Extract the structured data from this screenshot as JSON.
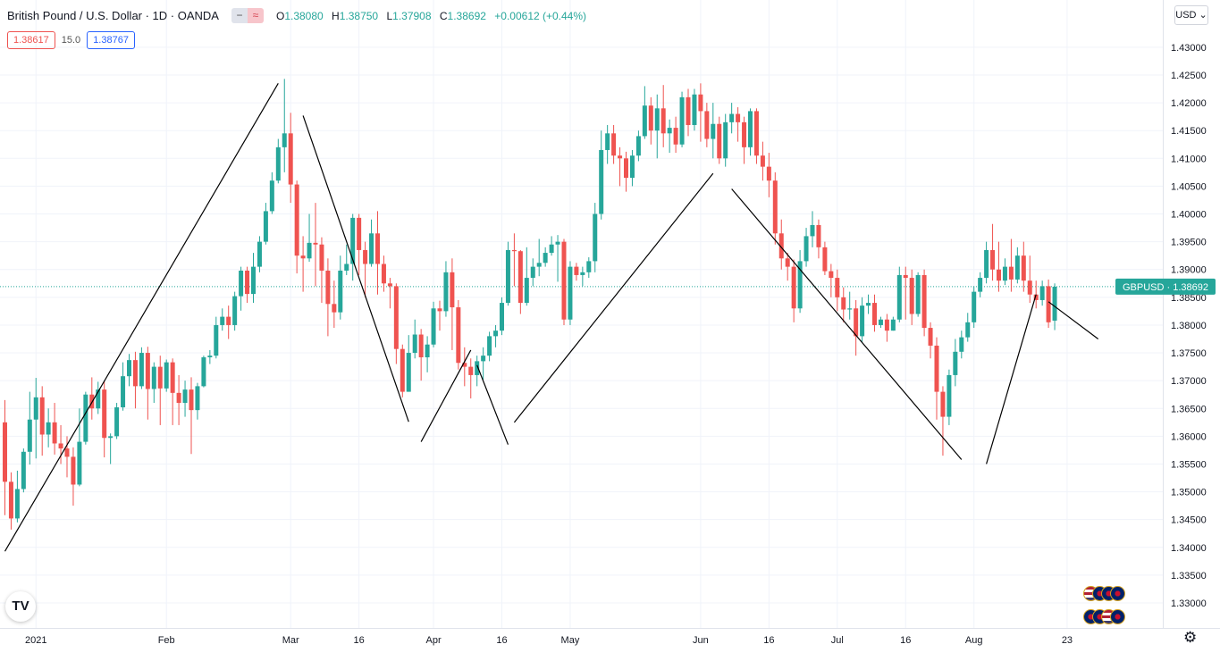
{
  "header": {
    "symbol": "British Pound / U.S. Dollar · 1D · OANDA",
    "open_label": "O",
    "open": "1.38080",
    "high_label": "H",
    "high": "1.38750",
    "low_label": "L",
    "low": "1.37908",
    "close_label": "C",
    "close": "1.38692",
    "change": "+0.00612 (+0.44%)",
    "minus_icon": "−",
    "wave_icon": "≈"
  },
  "spread": {
    "bid": "1.38617",
    "spread": "15.0",
    "ask": "1.38767"
  },
  "currency_button": "USD ⌄",
  "logo_text": "TV",
  "settings_icon": "⚙",
  "colors": {
    "up": "#26a69a",
    "down": "#ef5350",
    "grid": "#f0f3fa",
    "price_label": "#26a69a",
    "text": "#131722"
  },
  "chart_data": {
    "type": "candlestick",
    "title": "British Pound / U.S. Dollar · 1D · OANDA",
    "current_price_label": "GBPUSD · 1.38692",
    "current_price": 1.38692,
    "y_axis": {
      "ylim": [
        1.3255,
        1.4385
      ],
      "ticks": [
        "1.43000",
        "1.42500",
        "1.42000",
        "1.41500",
        "1.41000",
        "1.40500",
        "1.40000",
        "1.39500",
        "1.39000",
        "1.38500",
        "1.38000",
        "1.37500",
        "1.37000",
        "1.36500",
        "1.36000",
        "1.35500",
        "1.35000",
        "1.34500",
        "1.34000",
        "1.33500",
        "1.33000"
      ],
      "tick_values": [
        1.43,
        1.425,
        1.42,
        1.415,
        1.41,
        1.405,
        1.4,
        1.395,
        1.39,
        1.385,
        1.38,
        1.375,
        1.37,
        1.365,
        1.36,
        1.355,
        1.35,
        1.345,
        1.34,
        1.335,
        1.33
      ]
    },
    "x_axis": {
      "labels": [
        {
          "text": "2021",
          "index": 5
        },
        {
          "text": "Feb",
          "index": 26
        },
        {
          "text": "Mar",
          "index": 46
        },
        {
          "text": "16",
          "index": 57
        },
        {
          "text": "Apr",
          "index": 69
        },
        {
          "text": "16",
          "index": 80
        },
        {
          "text": "May",
          "index": 91
        },
        {
          "text": "Jun",
          "index": 112
        },
        {
          "text": "16",
          "index": 123
        },
        {
          "text": "Jul",
          "index": 134
        },
        {
          "text": "16",
          "index": 145
        },
        {
          "text": "Aug",
          "index": 156
        },
        {
          "text": "23",
          "index": 171
        }
      ]
    },
    "grid": true,
    "candles": [
      [
        1.3625,
        1.3518,
        1.3458,
        1.3665
      ],
      [
        1.3518,
        1.3452,
        1.3432,
        1.3535
      ],
      [
        1.3452,
        1.3505,
        1.3445,
        1.3538
      ],
      [
        1.3505,
        1.3572,
        1.3499,
        1.3578
      ],
      [
        1.3572,
        1.363,
        1.3549,
        1.368
      ],
      [
        1.363,
        1.367,
        1.356,
        1.3705
      ],
      [
        1.367,
        1.3603,
        1.3565,
        1.369
      ],
      [
        1.3603,
        1.3625,
        1.358,
        1.365
      ],
      [
        1.3625,
        1.3587,
        1.3567,
        1.366
      ],
      [
        1.3587,
        1.3578,
        1.355,
        1.362
      ],
      [
        1.3578,
        1.3563,
        1.3526,
        1.36
      ],
      [
        1.3563,
        1.3513,
        1.3475,
        1.358
      ],
      [
        1.3513,
        1.359,
        1.351,
        1.365
      ],
      [
        1.359,
        1.3675,
        1.3585,
        1.368
      ],
      [
        1.3675,
        1.365,
        1.363,
        1.3706
      ],
      [
        1.365,
        1.3684,
        1.364,
        1.3698
      ],
      [
        1.3684,
        1.3597,
        1.3562,
        1.37
      ],
      [
        1.3597,
        1.36,
        1.355,
        1.3605
      ],
      [
        1.36,
        1.3652,
        1.3595,
        1.366
      ],
      [
        1.3652,
        1.3708,
        1.3646,
        1.3733
      ],
      [
        1.3708,
        1.3737,
        1.369,
        1.3748
      ],
      [
        1.3737,
        1.369,
        1.365,
        1.3752
      ],
      [
        1.369,
        1.375,
        1.3685,
        1.376
      ],
      [
        1.375,
        1.3685,
        1.363,
        1.3761
      ],
      [
        1.3685,
        1.3725,
        1.366,
        1.3733
      ],
      [
        1.3725,
        1.3686,
        1.362,
        1.3745
      ],
      [
        1.3686,
        1.3733,
        1.368,
        1.3738
      ],
      [
        1.3733,
        1.3678,
        1.362,
        1.374
      ],
      [
        1.3678,
        1.366,
        1.362,
        1.371
      ],
      [
        1.366,
        1.3684,
        1.3635,
        1.37
      ],
      [
        1.3684,
        1.3647,
        1.3568,
        1.3706
      ],
      [
        1.3647,
        1.369,
        1.363,
        1.3696
      ],
      [
        1.369,
        1.3742,
        1.3688,
        1.3745
      ],
      [
        1.3742,
        1.3745,
        1.373,
        1.3755
      ],
      [
        1.3745,
        1.38,
        1.374,
        1.3815
      ],
      [
        1.38,
        1.3815,
        1.379,
        1.383
      ],
      [
        1.3815,
        1.38,
        1.3775,
        1.3835
      ],
      [
        1.38,
        1.3852,
        1.379,
        1.386
      ],
      [
        1.3852,
        1.3898,
        1.3826,
        1.3905
      ],
      [
        1.3898,
        1.3856,
        1.384,
        1.3905
      ],
      [
        1.3856,
        1.3905,
        1.384,
        1.393
      ],
      [
        1.3905,
        1.395,
        1.3895,
        1.396
      ],
      [
        1.395,
        1.4005,
        1.3945,
        1.402
      ],
      [
        1.4005,
        1.406,
        1.4,
        1.4075
      ],
      [
        1.406,
        1.412,
        1.4055,
        1.4135
      ],
      [
        1.412,
        1.4145,
        1.4075,
        1.4243
      ],
      [
        1.4145,
        1.4053,
        1.402,
        1.4182
      ],
      [
        1.4053,
        1.3925,
        1.3893,
        1.406
      ],
      [
        1.3925,
        1.392,
        1.386,
        1.396
      ],
      [
        1.392,
        1.3948,
        1.3914,
        1.4
      ],
      [
        1.3948,
        1.3945,
        1.387,
        1.402
      ],
      [
        1.3945,
        1.3898,
        1.384,
        1.3958
      ],
      [
        1.3898,
        1.3838,
        1.378,
        1.392
      ],
      [
        1.3838,
        1.3823,
        1.3795,
        1.388
      ],
      [
        1.3823,
        1.3898,
        1.381,
        1.3925
      ],
      [
        1.3898,
        1.391,
        1.389,
        1.3945
      ],
      [
        1.391,
        1.3993,
        1.388,
        1.4
      ],
      [
        1.3993,
        1.3935,
        1.389,
        1.4
      ],
      [
        1.3935,
        1.391,
        1.385,
        1.395
      ],
      [
        1.391,
        1.3965,
        1.3905,
        1.399
      ],
      [
        1.3965,
        1.391,
        1.3855,
        1.4005
      ],
      [
        1.391,
        1.3875,
        1.386,
        1.3925
      ],
      [
        1.3875,
        1.387,
        1.383,
        1.3885
      ],
      [
        1.387,
        1.3757,
        1.373,
        1.3875
      ],
      [
        1.3757,
        1.368,
        1.367,
        1.3765
      ],
      [
        1.368,
        1.375,
        1.368,
        1.3782
      ],
      [
        1.375,
        1.3783,
        1.374,
        1.381
      ],
      [
        1.3783,
        1.3742,
        1.37,
        1.3793
      ],
      [
        1.3742,
        1.3765,
        1.3715,
        1.378
      ],
      [
        1.3765,
        1.383,
        1.376,
        1.3842
      ],
      [
        1.383,
        1.3825,
        1.379,
        1.3844
      ],
      [
        1.3825,
        1.3895,
        1.3815,
        1.3915
      ],
      [
        1.3895,
        1.3832,
        1.3755,
        1.392
      ],
      [
        1.3832,
        1.3732,
        1.372,
        1.3845
      ],
      [
        1.3732,
        1.3725,
        1.369,
        1.376
      ],
      [
        1.3725,
        1.371,
        1.3668,
        1.374
      ],
      [
        1.371,
        1.3735,
        1.369,
        1.3745
      ],
      [
        1.3735,
        1.3745,
        1.3702,
        1.376
      ],
      [
        1.3745,
        1.378,
        1.3735,
        1.3788
      ],
      [
        1.378,
        1.379,
        1.376,
        1.38
      ],
      [
        1.379,
        1.384,
        1.3782,
        1.385
      ],
      [
        1.384,
        1.3935,
        1.3835,
        1.395
      ],
      [
        1.3935,
        1.3933,
        1.387,
        1.3965
      ],
      [
        1.3933,
        1.384,
        1.382,
        1.3935
      ],
      [
        1.384,
        1.3885,
        1.3835,
        1.394
      ],
      [
        1.3885,
        1.3905,
        1.387,
        1.392
      ],
      [
        1.3905,
        1.3912,
        1.3888,
        1.3955
      ],
      [
        1.3912,
        1.393,
        1.3905,
        1.394
      ],
      [
        1.393,
        1.3945,
        1.3925,
        1.396
      ],
      [
        1.3945,
        1.395,
        1.3878,
        1.3962
      ],
      [
        1.395,
        1.381,
        1.38,
        1.3955
      ],
      [
        1.381,
        1.3905,
        1.38,
        1.3915
      ],
      [
        1.3905,
        1.389,
        1.388,
        1.3912
      ],
      [
        1.389,
        1.3895,
        1.387,
        1.3905
      ],
      [
        1.3895,
        1.3915,
        1.3885,
        1.3922
      ],
      [
        1.3915,
        1.4,
        1.3895,
        1.402
      ],
      [
        1.4,
        1.4115,
        1.399,
        1.415
      ],
      [
        1.4115,
        1.4145,
        1.409,
        1.416
      ],
      [
        1.4145,
        1.4105,
        1.409,
        1.416
      ],
      [
        1.4105,
        1.41,
        1.405,
        1.412
      ],
      [
        1.41,
        1.4065,
        1.404,
        1.4112
      ],
      [
        1.4065,
        1.4105,
        1.405,
        1.4115
      ],
      [
        1.4105,
        1.414,
        1.4095,
        1.415
      ],
      [
        1.414,
        1.4195,
        1.4135,
        1.423
      ],
      [
        1.4195,
        1.415,
        1.4125,
        1.421
      ],
      [
        1.415,
        1.419,
        1.41,
        1.4215
      ],
      [
        1.419,
        1.4145,
        1.412,
        1.4232
      ],
      [
        1.4145,
        1.4155,
        1.411,
        1.417
      ],
      [
        1.4155,
        1.4125,
        1.411,
        1.4175
      ],
      [
        1.4125,
        1.421,
        1.412,
        1.422
      ],
      [
        1.421,
        1.416,
        1.414,
        1.4225
      ],
      [
        1.416,
        1.4215,
        1.415,
        1.4225
      ],
      [
        1.4215,
        1.4185,
        1.413,
        1.4235
      ],
      [
        1.4185,
        1.4135,
        1.412,
        1.42
      ],
      [
        1.4135,
        1.4162,
        1.41,
        1.42
      ],
      [
        1.4162,
        1.41,
        1.409,
        1.4175
      ],
      [
        1.41,
        1.4165,
        1.4085,
        1.418
      ],
      [
        1.4165,
        1.418,
        1.4145,
        1.42
      ],
      [
        1.418,
        1.4165,
        1.413,
        1.4192
      ],
      [
        1.4165,
        1.412,
        1.409,
        1.4175
      ],
      [
        1.412,
        1.4185,
        1.4105,
        1.419
      ],
      [
        1.4185,
        1.4105,
        1.409,
        1.419
      ],
      [
        1.4105,
        1.4085,
        1.406,
        1.413
      ],
      [
        1.4085,
        1.406,
        1.403,
        1.411
      ],
      [
        1.406,
        1.3965,
        1.3945,
        1.4075
      ],
      [
        1.3965,
        1.392,
        1.39,
        1.399
      ],
      [
        1.392,
        1.3905,
        1.388,
        1.393
      ],
      [
        1.3905,
        1.383,
        1.3805,
        1.3918
      ],
      [
        1.383,
        1.3915,
        1.3822,
        1.3935
      ],
      [
        1.3915,
        1.396,
        1.3905,
        1.3975
      ],
      [
        1.396,
        1.398,
        1.394,
        1.4005
      ],
      [
        1.398,
        1.394,
        1.392,
        1.399
      ],
      [
        1.394,
        1.3897,
        1.389,
        1.395
      ],
      [
        1.3897,
        1.3885,
        1.385,
        1.391
      ],
      [
        1.3885,
        1.385,
        1.3825,
        1.39
      ],
      [
        1.385,
        1.3828,
        1.3805,
        1.3868
      ],
      [
        1.3828,
        1.383,
        1.381,
        1.386
      ],
      [
        1.383,
        1.378,
        1.3745,
        1.3845
      ],
      [
        1.378,
        1.3835,
        1.377,
        1.385
      ],
      [
        1.3835,
        1.384,
        1.382,
        1.3855
      ],
      [
        1.384,
        1.38,
        1.3788,
        1.3855
      ],
      [
        1.38,
        1.381,
        1.3795,
        1.3815
      ],
      [
        1.381,
        1.379,
        1.377,
        1.382
      ],
      [
        1.379,
        1.381,
        1.379,
        1.3815
      ],
      [
        1.381,
        1.389,
        1.3805,
        1.3905
      ],
      [
        1.389,
        1.3885,
        1.381,
        1.3905
      ],
      [
        1.3885,
        1.382,
        1.38,
        1.39
      ],
      [
        1.382,
        1.389,
        1.3815,
        1.3895
      ],
      [
        1.389,
        1.3795,
        1.378,
        1.39
      ],
      [
        1.3795,
        1.3763,
        1.374,
        1.3805
      ],
      [
        1.3763,
        1.368,
        1.363,
        1.3778
      ],
      [
        1.368,
        1.3635,
        1.3565,
        1.369
      ],
      [
        1.3635,
        1.371,
        1.362,
        1.372
      ],
      [
        1.371,
        1.3752,
        1.369,
        1.3775
      ],
      [
        1.3752,
        1.3778,
        1.374,
        1.379
      ],
      [
        1.3778,
        1.3805,
        1.377,
        1.3822
      ],
      [
        1.3805,
        1.386,
        1.3795,
        1.387
      ],
      [
        1.386,
        1.3885,
        1.385,
        1.3895
      ],
      [
        1.3885,
        1.3935,
        1.3875,
        1.395
      ],
      [
        1.3935,
        1.39,
        1.388,
        1.3982
      ],
      [
        1.39,
        1.388,
        1.386,
        1.395
      ],
      [
        1.388,
        1.3905,
        1.3872,
        1.392
      ],
      [
        1.3905,
        1.3882,
        1.386,
        1.3955
      ],
      [
        1.3882,
        1.3925,
        1.3875,
        1.394
      ],
      [
        1.3925,
        1.388,
        1.386,
        1.395
      ],
      [
        1.388,
        1.3855,
        1.384,
        1.3925
      ],
      [
        1.3855,
        1.3845,
        1.383,
        1.388
      ],
      [
        1.3845,
        1.387,
        1.3835,
        1.388
      ],
      [
        1.387,
        1.3805,
        1.3795,
        1.3882
      ],
      [
        1.3808,
        1.3869,
        1.3791,
        1.3875
      ]
    ],
    "trend_lines": [
      [
        0,
        1.3393,
        44,
        1.4235
      ],
      [
        48,
        1.4177,
        65,
        1.3626
      ],
      [
        67,
        1.359,
        75,
        1.3755
      ],
      [
        76,
        1.3728,
        81,
        1.3585
      ],
      [
        82,
        1.3625,
        114,
        1.4073
      ],
      [
        117,
        1.4045,
        154,
        1.3558
      ],
      [
        158,
        1.355,
        166,
        1.3855
      ],
      [
        168,
        1.3842,
        176,
        1.3775
      ]
    ]
  }
}
